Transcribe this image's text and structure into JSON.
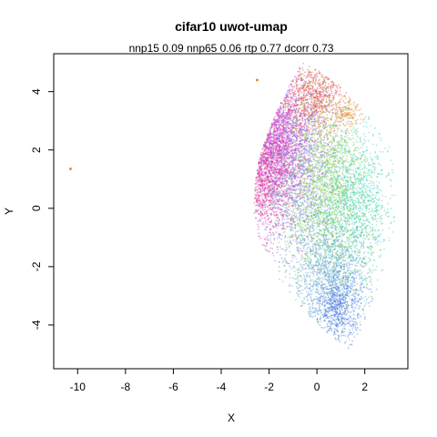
{
  "chart_data": {
    "type": "scatter",
    "title": "cifar10 uwot-umap",
    "subtitle": "nnp15 0.09 nnp65 0.06 rtp 0.77 dcorr 0.73",
    "xlabel": "X",
    "ylabel": "Y",
    "xlim": [
      -11.0,
      3.8
    ],
    "ylim": [
      -5.5,
      5.3
    ],
    "x_ticks": [
      -10,
      -8,
      -6,
      -4,
      -2,
      0,
      2
    ],
    "y_ticks": [
      -4,
      -2,
      0,
      2,
      4
    ],
    "grid": false,
    "legend": "none",
    "outliers": [
      {
        "x": -10.3,
        "y": 1.35,
        "color": "#f08a24"
      },
      {
        "x": -2.5,
        "y": 4.4,
        "color": "#f08a24"
      }
    ],
    "clusters": [
      {
        "name": "",
        "color": "#e0309a",
        "cx": -2.2,
        "cy": 1.6,
        "sx": 0.7,
        "sy": 1.2,
        "n": 1400
      },
      {
        "name": "",
        "color": "#c833d6",
        "cx": -1.6,
        "cy": 2.6,
        "sx": 0.8,
        "sy": 1.0,
        "n": 900
      },
      {
        "name": "",
        "color": "#e24a3a",
        "cx": -0.1,
        "cy": 3.8,
        "sx": 0.7,
        "sy": 0.6,
        "n": 700
      },
      {
        "name": "",
        "color": "#f08a24",
        "cx": 1.3,
        "cy": 3.2,
        "sx": 0.3,
        "sy": 0.2,
        "n": 120
      },
      {
        "name": "",
        "color": "#7f7fe6",
        "cx": -0.8,
        "cy": 1.2,
        "sx": 0.9,
        "sy": 1.6,
        "n": 1400
      },
      {
        "name": "",
        "color": "#5cc86a",
        "cx": 0.6,
        "cy": -0.4,
        "sx": 1.0,
        "sy": 1.6,
        "n": 1600
      },
      {
        "name": "",
        "color": "#39d6c8",
        "cx": 1.6,
        "cy": 0.4,
        "sx": 0.8,
        "sy": 1.2,
        "n": 900
      },
      {
        "name": "",
        "color": "#6aa0e6",
        "cx": 0.6,
        "cy": -2.5,
        "sx": 0.8,
        "sy": 1.0,
        "n": 1000
      },
      {
        "name": "",
        "color": "#9bd93a",
        "cx": 0.3,
        "cy": 1.4,
        "sx": 0.8,
        "sy": 1.3,
        "n": 800
      },
      {
        "name": "",
        "color": "#3d6fe0",
        "cx": 0.9,
        "cy": -3.4,
        "sx": 0.5,
        "sy": 0.6,
        "n": 500
      }
    ]
  }
}
